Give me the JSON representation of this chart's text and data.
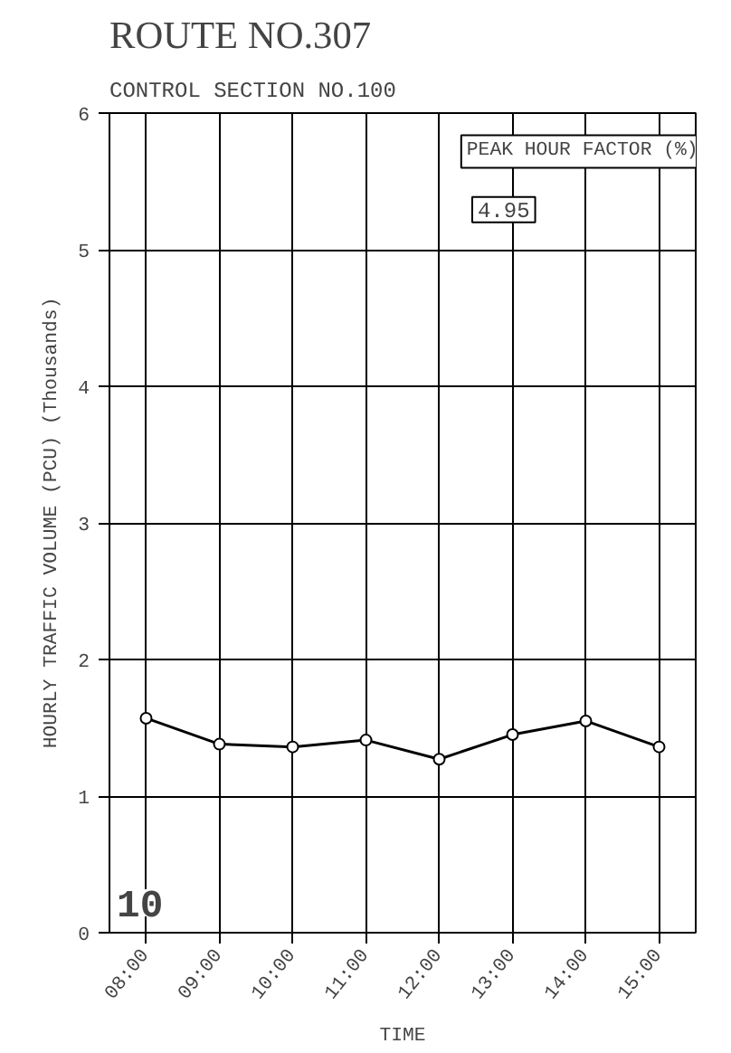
{
  "chart_data": {
    "type": "line",
    "title": "ROUTE NO.307",
    "subtitle": "CONTROL SECTION NO.100",
    "xlabel": "TIME",
    "ylabel": "HOURLY TRAFFIC VOLUME (PCU) (Thousands)",
    "x": [
      8,
      9,
      10,
      11,
      12,
      13,
      14,
      15
    ],
    "series": [
      {
        "color": "#000000",
        "values": [
          1.57,
          1.38,
          1.36,
          1.41,
          1.27,
          1.45,
          1.55,
          1.36
        ]
      }
    ],
    "xlim": [
      7.5,
      15.5
    ],
    "ylim": [
      0,
      6
    ],
    "xticks": [
      {
        "value": 8,
        "label": "08:00"
      },
      {
        "value": 9,
        "label": "09:00"
      },
      {
        "value": 10,
        "label": "10:00"
      },
      {
        "value": 11,
        "label": "11:00"
      },
      {
        "value": 12,
        "label": "12:00"
      },
      {
        "value": 13,
        "label": "13:00"
      },
      {
        "value": 14,
        "label": "14:00"
      },
      {
        "value": 15,
        "label": "15:00"
      }
    ],
    "yticks": [
      0,
      1,
      2,
      3,
      4,
      5,
      6
    ],
    "grid": true,
    "marker": "circle",
    "line_style": "solid",
    "annotations": [
      "PEAK HOUR FACTOR (%)",
      "4.95",
      "10"
    ]
  }
}
